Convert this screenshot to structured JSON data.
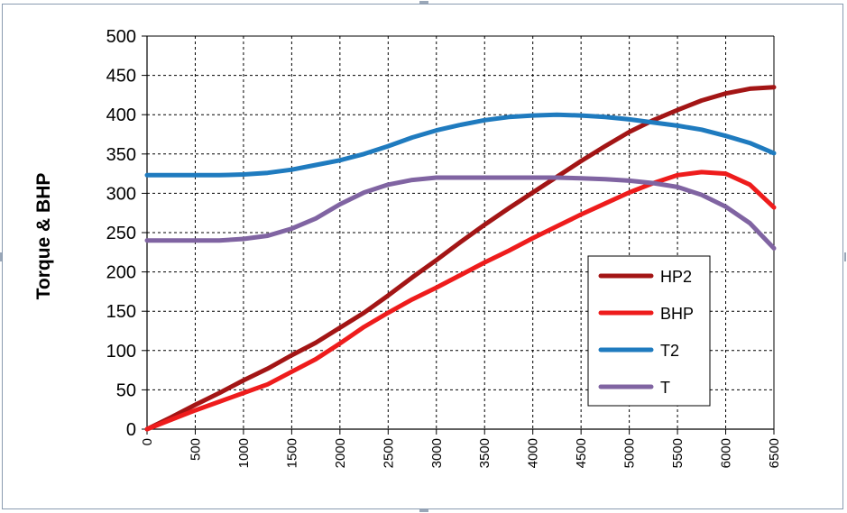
{
  "chart_data": {
    "type": "line",
    "ylabel": "Torque & BHP",
    "xlabel": "",
    "xlim": [
      0,
      6500
    ],
    "ylim": [
      0,
      500
    ],
    "x_ticks": [
      0,
      500,
      1000,
      1500,
      2000,
      2500,
      3000,
      3500,
      4000,
      4500,
      5000,
      5500,
      6000,
      6500
    ],
    "y_ticks": [
      0,
      50,
      100,
      150,
      200,
      250,
      300,
      350,
      400,
      450,
      500
    ],
    "x_tick_labels": [
      "0",
      "500",
      "1000",
      "1500",
      "2000",
      "2500",
      "3000",
      "3500",
      "4000",
      "4500",
      "5000",
      "5500",
      "6000",
      "6500"
    ],
    "y_tick_labels": [
      "0",
      "50",
      "100",
      "150",
      "200",
      "250",
      "300",
      "350",
      "400",
      "450",
      "500"
    ],
    "grid": true,
    "legend_position": "bottom-right",
    "x": [
      0,
      250,
      500,
      750,
      1000,
      1250,
      1500,
      1750,
      2000,
      2250,
      2500,
      2750,
      3000,
      3250,
      3500,
      3750,
      4000,
      4250,
      4500,
      4750,
      5000,
      5250,
      5500,
      5750,
      6000,
      6250,
      6500
    ],
    "series": [
      {
        "name": "HP2",
        "color": "#a31515",
        "values": [
          0,
          15,
          31,
          46,
          62,
          77,
          94,
          110,
          129,
          148,
          170,
          193,
          215,
          238,
          260,
          281,
          301,
          321,
          341,
          360,
          378,
          393,
          406,
          418,
          427,
          433,
          435
        ]
      },
      {
        "name": "BHP",
        "color": "#ee1c1c",
        "values": [
          0,
          12,
          24,
          35,
          46,
          57,
          73,
          89,
          109,
          130,
          148,
          165,
          180,
          196,
          212,
          227,
          243,
          258,
          273,
          287,
          301,
          313,
          323,
          327,
          325,
          311,
          282
        ]
      },
      {
        "name": "T2",
        "color": "#1f7bbf",
        "values": [
          323,
          323,
          323,
          323,
          324,
          326,
          330,
          336,
          342,
          350,
          360,
          371,
          380,
          387,
          393,
          397,
          399,
          400,
          399,
          397,
          394,
          390,
          386,
          381,
          373,
          364,
          351
        ]
      },
      {
        "name": "T",
        "color": "#8064a2",
        "values": [
          240,
          240,
          240,
          240,
          242,
          246,
          255,
          268,
          286,
          301,
          311,
          317,
          320,
          320,
          320,
          320,
          320,
          320,
          319,
          318,
          316,
          313,
          308,
          298,
          283,
          262,
          230
        ]
      }
    ]
  }
}
